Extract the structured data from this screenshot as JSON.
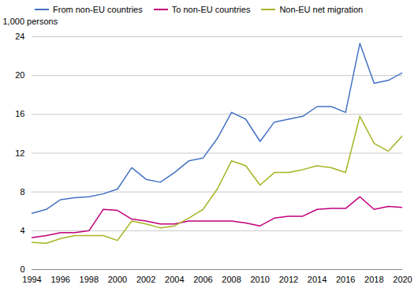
{
  "chart_data": {
    "type": "line",
    "ylabel": "1,000 persons",
    "x": [
      1994,
      1995,
      1996,
      1997,
      1998,
      1999,
      2000,
      2001,
      2002,
      2003,
      2004,
      2005,
      2006,
      2007,
      2008,
      2009,
      2010,
      2011,
      2012,
      2013,
      2014,
      2015,
      2016,
      2017,
      2018,
      2019,
      2020
    ],
    "series": [
      {
        "name": "From non-EU countries",
        "color": "#4472C4",
        "values": [
          5.8,
          6.2,
          7.2,
          7.4,
          7.5,
          7.8,
          8.3,
          10.5,
          9.3,
          9.0,
          10.0,
          11.2,
          11.5,
          13.5,
          16.2,
          15.5,
          13.2,
          15.2,
          15.5,
          15.8,
          16.8,
          16.8,
          16.2,
          23.3,
          19.2,
          19.5,
          20.3
        ]
      },
      {
        "name": "To non-EU countries",
        "color": "#C0007A",
        "values": [
          3.3,
          3.5,
          3.8,
          3.8,
          4.0,
          6.2,
          6.1,
          5.2,
          5.0,
          4.7,
          4.7,
          5.0,
          5.0,
          5.0,
          5.0,
          4.8,
          4.5,
          5.3,
          5.5,
          5.5,
          6.2,
          6.3,
          6.3,
          7.5,
          6.2,
          6.5,
          6.4
        ]
      },
      {
        "name": "Non-EU net migration",
        "color": "#A6B422",
        "values": [
          2.8,
          2.7,
          3.2,
          3.5,
          3.5,
          3.5,
          3.0,
          5.0,
          4.7,
          4.3,
          4.5,
          5.3,
          6.2,
          8.3,
          11.2,
          10.7,
          8.7,
          10.0,
          10.0,
          10.3,
          10.7,
          10.5,
          10.0,
          15.8,
          13.0,
          12.2,
          13.8
        ]
      }
    ],
    "xlim": [
      1994,
      2020
    ],
    "ylim": [
      0,
      24
    ],
    "xticks": [
      1994,
      1996,
      1998,
      2000,
      2002,
      2004,
      2006,
      2008,
      2010,
      2012,
      2014,
      2016,
      2018,
      2020
    ],
    "yticks": [
      0,
      4,
      8,
      12,
      16,
      20,
      24
    ],
    "grid": true,
    "legend": "upper left"
  }
}
